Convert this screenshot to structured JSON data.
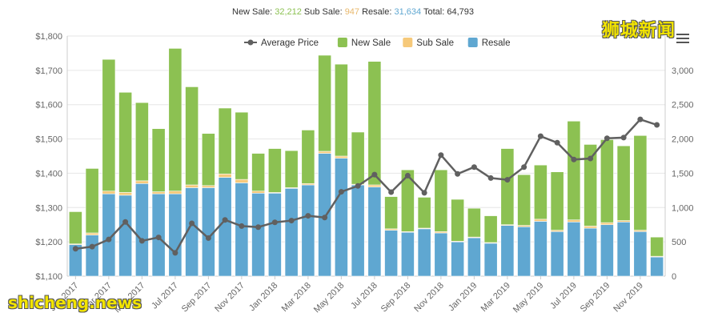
{
  "summary": {
    "new_sale_label": "New Sale:",
    "new_sale_value": "32,212",
    "sub_sale_label": "Sub Sale:",
    "sub_sale_value": "947",
    "resale_label": "Resale:",
    "resale_value": "31,634",
    "total_label": "Total:",
    "total_value": "64,793"
  },
  "watermarks": {
    "top": "狮城新闻",
    "bottom": "shicheng.news"
  },
  "colors": {
    "new_sale": "#8cc152",
    "sub_sale": "#f6c97a",
    "resale": "#5fa7d1",
    "average_price": "#606060",
    "summary_new_sale": "#8cc152",
    "summary_sub_sale": "#e8b86d",
    "summary_resale": "#5fa7d1"
  },
  "chart_data": {
    "type": "bar",
    "stacked": true,
    "legend": {
      "placement": "top",
      "items": [
        "Average Price",
        "New Sale",
        "Sub Sale",
        "Resale"
      ]
    },
    "categories": [
      "Jan 2017",
      "Feb 2017",
      "Mar 2017",
      "Apr 2017",
      "May 2017",
      "Jun 2017",
      "Jul 2017",
      "Aug 2017",
      "Sep 2017",
      "Oct 2017",
      "Nov 2017",
      "Dec 2017",
      "Jan 2018",
      "Feb 2018",
      "Mar 2018",
      "Apr 2018",
      "May 2018",
      "Jun 2018",
      "Jul 2018",
      "Aug 2018",
      "Sep 2018",
      "Oct 2018",
      "Nov 2018",
      "Dec 2018",
      "Jan 2019",
      "Feb 2019",
      "Mar 2019",
      "Apr 2019",
      "May 2019",
      "Jun 2019",
      "Jul 2019",
      "Aug 2019",
      "Sep 2019",
      "Oct 2019",
      "Nov 2019",
      "Dec 2019"
    ],
    "x_tick_labels": [
      "Jan 2017",
      "Mar 2017",
      "May 2017",
      "Jul 2017",
      "Sep 2017",
      "Nov 2017",
      "Jan 2018",
      "Mar 2018",
      "May 2018",
      "Jul 2018",
      "Sep 2018",
      "Nov 2018",
      "Jan 2019",
      "Mar 2019",
      "May 2019",
      "Jul 2019",
      "Sep 2019",
      "Nov 2019"
    ],
    "y_left": {
      "min": 1100,
      "max": 1800,
      "ticks": [
        "$1,100",
        "$1,200",
        "$1,300",
        "$1,400",
        "$1,500",
        "$1,600",
        "$1,700",
        "$1,800"
      ],
      "tick_values": [
        1100,
        1200,
        1300,
        1400,
        1500,
        1600,
        1700,
        1800
      ]
    },
    "y_right": {
      "min": 0,
      "max": 3500,
      "ticks": [
        "0",
        "500",
        "1,000",
        "1,500",
        "2,000",
        "2,500",
        "3,000"
      ],
      "tick_values": [
        0,
        500,
        1000,
        1500,
        2000,
        2500,
        3000
      ]
    },
    "grid": true,
    "series": [
      {
        "name": "Resale",
        "axis": "right",
        "values": [
          460,
          600,
          1200,
          1180,
          1350,
          1200,
          1200,
          1290,
          1290,
          1440,
          1360,
          1210,
          1210,
          1280,
          1330,
          1790,
          1720,
          1330,
          1300,
          670,
          640,
          690,
          630,
          500,
          560,
          480,
          740,
          720,
          800,
          650,
          790,
          700,
          750,
          790,
          650,
          280
        ]
      },
      {
        "name": "Sub Sale",
        "axis": "right",
        "values": [
          10,
          30,
          40,
          40,
          40,
          30,
          40,
          40,
          30,
          50,
          50,
          30,
          10,
          10,
          20,
          30,
          30,
          10,
          30,
          20,
          10,
          10,
          20,
          10,
          10,
          10,
          10,
          20,
          30,
          20,
          30,
          30,
          30,
          20,
          20,
          10
        ]
      },
      {
        "name": "New Sale",
        "axis": "right",
        "values": [
          470,
          940,
          1920,
          1460,
          1140,
          920,
          2080,
          1430,
          760,
          960,
          980,
          550,
          640,
          540,
          780,
          1400,
          1340,
          760,
          1800,
          470,
          900,
          450,
          900,
          610,
          420,
          390,
          1110,
          740,
          790,
          850,
          1440,
          1190,
          1210,
          1090,
          1380,
          280
        ]
      },
      {
        "name": "Average Price",
        "type": "line",
        "axis": "left",
        "values": [
          1180,
          1186,
          1207,
          1258,
          1203,
          1213,
          1168,
          1254,
          1211,
          1264,
          1246,
          1243,
          1257,
          1262,
          1276,
          1271,
          1346,
          1363,
          1396,
          1345,
          1393,
          1343,
          1453,
          1398,
          1418,
          1386,
          1381,
          1418,
          1508,
          1489,
          1440,
          1443,
          1502,
          1504,
          1557,
          1541
        ]
      }
    ]
  }
}
